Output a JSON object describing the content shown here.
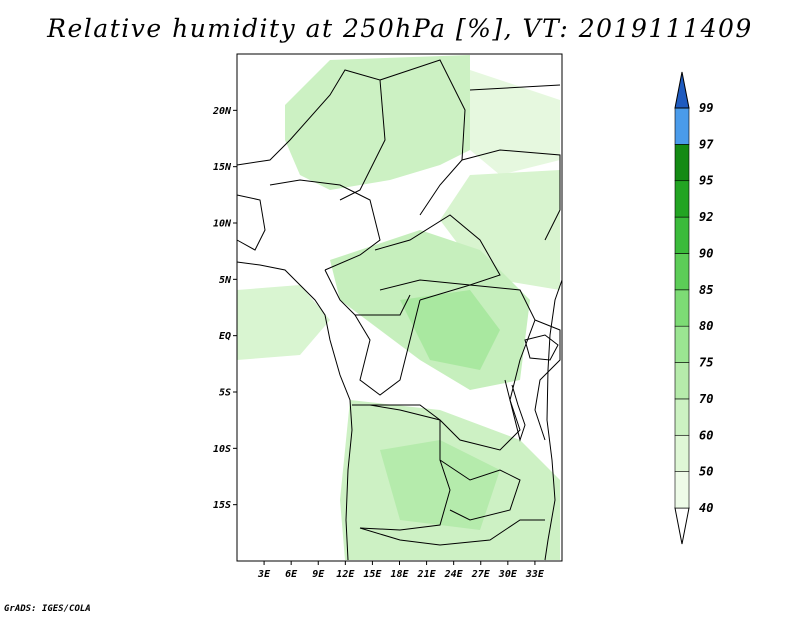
{
  "title": "Relative humidity at 250hPa [%], VT: 2019111409",
  "credit": "GrADS: IGES/COLA",
  "map": {
    "lon_range": [
      0,
      36
    ],
    "lat_range": [
      -20,
      25
    ],
    "x_ticks": [
      "3E",
      "6E",
      "9E",
      "12E",
      "15E",
      "18E",
      "21E",
      "24E",
      "27E",
      "30E",
      "33E"
    ],
    "y_ticks": [
      "20N",
      "15N",
      "10N",
      "5N",
      "EQ",
      "5S",
      "10S",
      "15S"
    ]
  },
  "colorbar": {
    "levels": [
      "40",
      "50",
      "60",
      "70",
      "75",
      "80",
      "85",
      "90",
      "92",
      "95",
      "97",
      "99"
    ],
    "colors": [
      "#ffffff",
      "#eefbe8",
      "#dff7d6",
      "#ccf2c2",
      "#b6ebab",
      "#9be592",
      "#7ddb75",
      "#5ccd57",
      "#3bbb3b",
      "#22a422",
      "#138a13",
      "#4a9bea",
      "#2a74d8",
      "#1f5bbf"
    ]
  },
  "chart_data": {
    "type": "heatmap",
    "title": "Relative humidity at 250hPa [%], VT: 2019111409",
    "xlabel": "",
    "ylabel": "",
    "xlim": [
      0,
      36
    ],
    "ylim": [
      -20,
      25
    ],
    "colorbar_levels": [
      40,
      50,
      60,
      70,
      75,
      80,
      85,
      90,
      92,
      95,
      97,
      99
    ]
  }
}
